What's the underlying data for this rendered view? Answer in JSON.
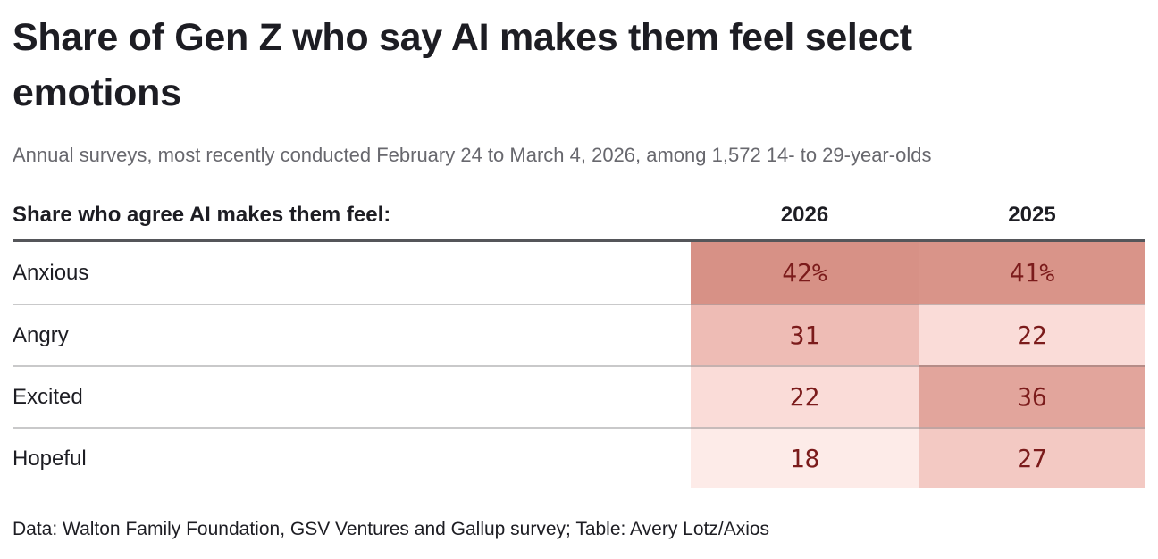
{
  "page": {
    "background": "#ffffff"
  },
  "header": {
    "title": "Share of Gen Z who say AI makes them feel select emotions",
    "subtitle": "Annual surveys, most recently conducted February 24 to March 4, 2026, among 1,572 14- to 29-year-olds"
  },
  "table": {
    "label_header": "Share who agree AI makes them feel:",
    "columns": [
      "2026",
      "2025"
    ],
    "value_color": "#7b1b1b",
    "header_rule_color": "#55565a",
    "rows": [
      {
        "label": "Anxious",
        "values": [
          "42%",
          "41%"
        ],
        "colors": [
          "#d79186",
          "#d99489"
        ]
      },
      {
        "label": "Angry",
        "values": [
          "31",
          "22"
        ],
        "colors": [
          "#eebcb5",
          "#fadcd8"
        ]
      },
      {
        "label": "Excited",
        "values": [
          "22",
          "36"
        ],
        "colors": [
          "#fadcd8",
          "#e2a59c"
        ]
      },
      {
        "label": "Hopeful",
        "values": [
          "18",
          "27"
        ],
        "colors": [
          "#fdebe8",
          "#f3c9c3"
        ]
      }
    ]
  },
  "footer": {
    "credit": "Data: Walton Family Foundation, GSV Ventures and Gallup survey; Table: Avery Lotz/Axios"
  },
  "chart_data": {
    "type": "table",
    "title": "Share of Gen Z who say AI makes them feel select emotions",
    "subtitle": "Annual surveys, most recently conducted February 24 to March 4, 2026, among 1,572 14- to 29-year-olds",
    "row_header": "Share who agree AI makes them feel:",
    "categories": [
      "Anxious",
      "Angry",
      "Excited",
      "Hopeful"
    ],
    "series": [
      {
        "name": "2026",
        "values": [
          42,
          31,
          22,
          18
        ]
      },
      {
        "name": "2025",
        "values": [
          41,
          22,
          36,
          27
        ]
      }
    ],
    "units": "percent",
    "heatmap": true,
    "heatmap_scale": {
      "low_value": 18,
      "low_color": "#fdebe8",
      "high_value": 42,
      "high_color": "#d79186"
    },
    "source": "Data: Walton Family Foundation, GSV Ventures and Gallup survey; Table: Avery Lotz/Axios"
  }
}
